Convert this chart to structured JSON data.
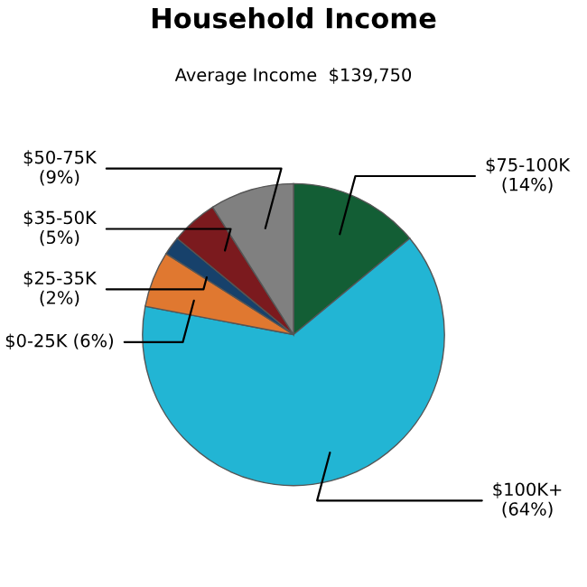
{
  "chart_data": {
    "type": "pie",
    "title": "Household Income",
    "subtitle": "Average Income  $139,750",
    "categories": [
      "$75-100K",
      "$100K+",
      "$0-25K",
      "$25-35K",
      "$35-50K",
      "$50-75K"
    ],
    "values": [
      14,
      64,
      6,
      2,
      5,
      9
    ],
    "value_labels": [
      "(14%)",
      "(64%)",
      "(6%)",
      "(2%)",
      "(5%)",
      "(9%)"
    ],
    "colors": [
      "#135e35",
      "#22b5d4",
      "#e07830",
      "#17416b",
      "#7b1a1e",
      "#808080"
    ],
    "legend": false
  }
}
